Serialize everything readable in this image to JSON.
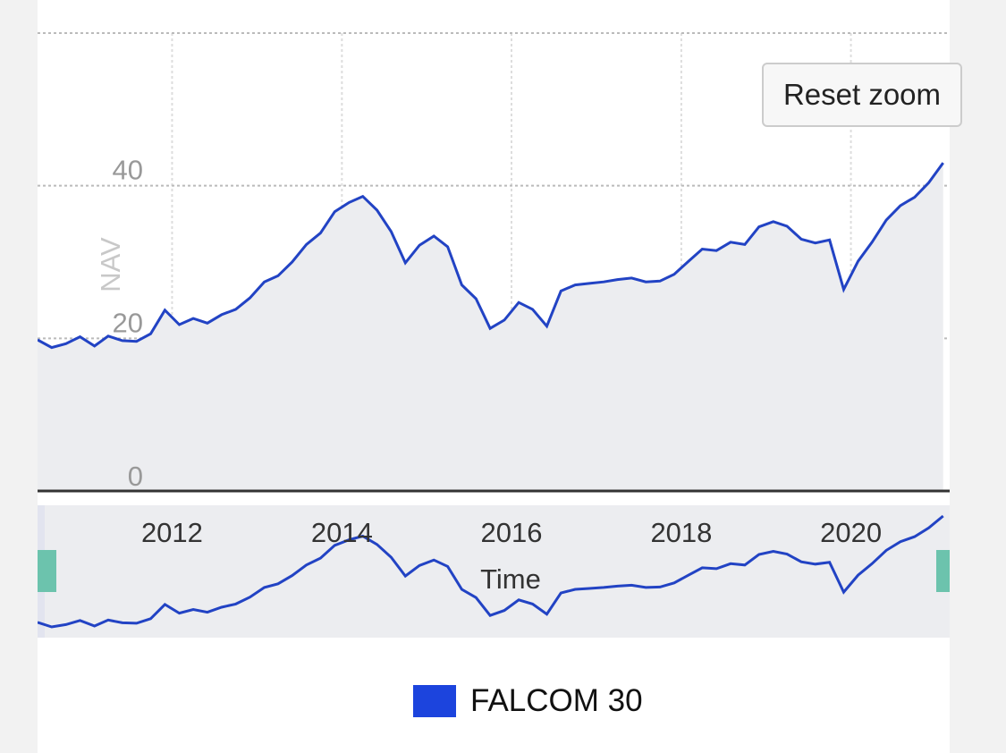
{
  "reset_zoom_label": "Reset zoom",
  "colors": {
    "line": "#2243c4",
    "area": "#ecedf0",
    "handle": "#6cc3ad",
    "legend_swatch": "#1c44dd"
  },
  "chart_data": {
    "type": "area",
    "x_type": "datetime",
    "ylabel": "NAV",
    "xlabel": "Time",
    "ylim": [
      0,
      60
    ],
    "xlim": [
      "2010-06-01",
      "2021-03-01"
    ],
    "y_ticks": [
      0,
      20,
      40
    ],
    "x_ticks": [
      "2012",
      "2014",
      "2016",
      "2018",
      "2020"
    ],
    "grid": true,
    "legend_position": "bottom-center",
    "navigator": true,
    "series": [
      {
        "name": "FALCOM 30",
        "color": "#2243c4",
        "x": [
          "2010-06",
          "2010-08",
          "2010-10",
          "2010-12",
          "2011-02",
          "2011-04",
          "2011-06",
          "2011-08",
          "2011-10",
          "2011-12",
          "2012-02",
          "2012-04",
          "2012-06",
          "2012-08",
          "2012-10",
          "2012-12",
          "2013-02",
          "2013-04",
          "2013-06",
          "2013-08",
          "2013-10",
          "2013-12",
          "2014-02",
          "2014-04",
          "2014-06",
          "2014-08",
          "2014-10",
          "2014-12",
          "2015-02",
          "2015-04",
          "2015-06",
          "2015-08",
          "2015-10",
          "2015-12",
          "2016-02",
          "2016-04",
          "2016-06",
          "2016-08",
          "2016-10",
          "2016-12",
          "2017-02",
          "2017-04",
          "2017-06",
          "2017-08",
          "2017-10",
          "2017-12",
          "2018-02",
          "2018-04",
          "2018-06",
          "2018-08",
          "2018-10",
          "2018-12",
          "2019-02",
          "2019-04",
          "2019-06",
          "2019-08",
          "2019-10",
          "2019-12",
          "2020-02",
          "2020-04",
          "2020-06",
          "2020-08",
          "2020-10",
          "2020-12",
          "2021-02"
        ],
        "values": [
          19.8,
          18.8,
          19.3,
          20.2,
          19.0,
          20.3,
          19.7,
          19.6,
          20.6,
          23.7,
          21.8,
          22.6,
          22.0,
          23.1,
          23.8,
          25.3,
          27.4,
          28.2,
          30.0,
          32.3,
          33.8,
          36.6,
          37.8,
          38.6,
          36.8,
          34.0,
          29.9,
          32.2,
          33.4,
          32.0,
          27.0,
          25.2,
          21.3,
          22.4,
          24.7,
          23.8,
          21.6,
          26.2,
          27.0,
          27.2,
          27.4,
          27.7,
          27.9,
          27.4,
          27.5,
          28.4,
          30.1,
          31.7,
          31.5,
          32.6,
          32.3,
          34.6,
          35.3,
          34.7,
          33.0,
          32.5,
          32.9,
          26.4,
          30.1,
          32.6,
          35.5,
          37.4,
          38.5,
          40.4,
          43.0
        ]
      }
    ]
  }
}
